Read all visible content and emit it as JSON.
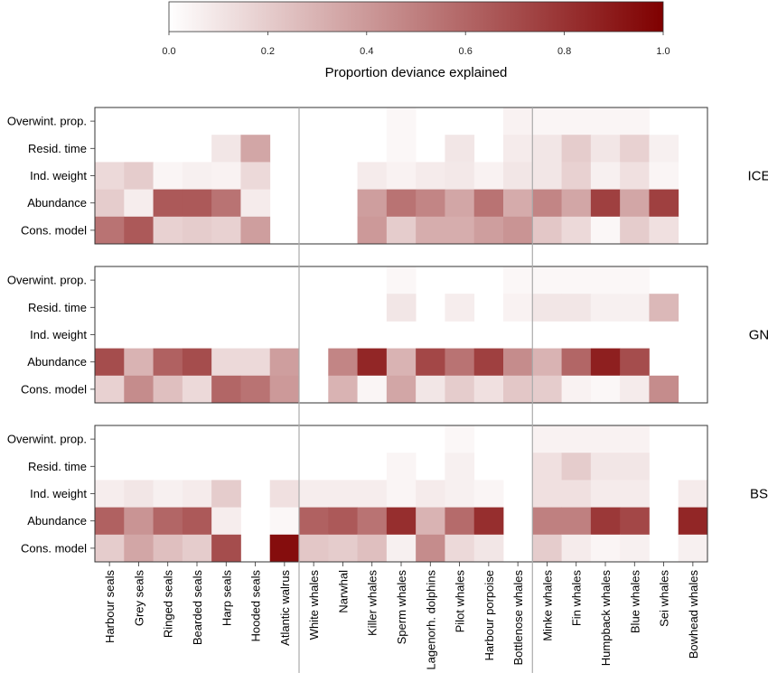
{
  "chart_data": {
    "type": "heatmap",
    "colorbar": {
      "title": "Proportion deviance explained",
      "min": 0.0,
      "max": 1.0,
      "ticks": [
        "0.0",
        "0.2",
        "0.4",
        "0.6",
        "0.8",
        "1.0"
      ],
      "color_low": "#ffffff",
      "color_high": "#7f0000"
    },
    "species": [
      "Harbour seals",
      "Grey seals",
      "Ringed seals",
      "Bearded seals",
      "Harp seals",
      "Hooded seals",
      "Atlantic walrus",
      "White whales",
      "Narwhal",
      "Killer whales",
      "Sperm whales",
      "Lagenorh. dolphins",
      "Pilot whales",
      "Harbour porpoise",
      "Bottlenose whales",
      "Minke whales",
      "Fin whales",
      "Humpback whales",
      "Blue whales",
      "Sei whales",
      "Bowhead whales"
    ],
    "variables": [
      "Overwint. prop.",
      "Resid. time",
      "Ind. weight",
      "Abundance",
      "Cons. model"
    ],
    "group_separators_after": [
      6,
      14
    ],
    "panels": [
      {
        "region": "ICE",
        "values": [
          [
            null,
            null,
            null,
            null,
            null,
            null,
            null,
            null,
            null,
            null,
            0.03,
            null,
            null,
            null,
            0.05,
            0.04,
            0.04,
            0.04,
            0.04,
            null,
            null
          ],
          [
            null,
            null,
            null,
            null,
            0.1,
            0.35,
            null,
            null,
            null,
            null,
            0.03,
            null,
            0.1,
            null,
            0.08,
            0.1,
            0.2,
            0.1,
            0.18,
            0.06,
            null
          ],
          [
            0.15,
            0.2,
            0.04,
            0.06,
            0.05,
            0.15,
            null,
            null,
            null,
            0.08,
            0.05,
            0.08,
            0.09,
            0.05,
            0.1,
            0.1,
            0.18,
            0.06,
            0.12,
            0.04,
            null
          ],
          [
            0.2,
            0.07,
            0.65,
            0.65,
            0.55,
            0.08,
            null,
            null,
            null,
            0.38,
            0.55,
            0.48,
            0.35,
            0.55,
            0.33,
            0.48,
            0.35,
            0.75,
            0.35,
            0.75,
            null
          ],
          [
            0.55,
            0.65,
            0.18,
            0.2,
            0.18,
            0.38,
            null,
            null,
            null,
            0.4,
            0.2,
            0.32,
            0.32,
            0.38,
            0.42,
            0.22,
            0.15,
            0.03,
            0.2,
            0.12,
            null
          ]
        ]
      },
      {
        "region": "GN",
        "values": [
          [
            null,
            null,
            null,
            null,
            null,
            null,
            null,
            null,
            null,
            null,
            0.03,
            null,
            null,
            null,
            0.03,
            0.03,
            0.03,
            0.03,
            0.03,
            null,
            null
          ],
          [
            null,
            null,
            null,
            null,
            null,
            null,
            null,
            null,
            null,
            null,
            0.1,
            null,
            0.07,
            null,
            0.05,
            0.1,
            0.1,
            0.06,
            0.06,
            0.28,
            null
          ],
          [
            null,
            null,
            null,
            null,
            null,
            null,
            null,
            null,
            null,
            null,
            null,
            null,
            null,
            null,
            null,
            null,
            null,
            null,
            null,
            null,
            null
          ],
          [
            0.7,
            0.3,
            0.62,
            0.7,
            0.15,
            0.15,
            0.38,
            null,
            0.48,
            0.85,
            0.3,
            0.72,
            0.55,
            0.75,
            0.45,
            0.3,
            0.6,
            0.88,
            0.7,
            null,
            null
          ],
          [
            0.18,
            0.45,
            0.25,
            0.15,
            0.6,
            0.55,
            0.4,
            null,
            0.3,
            0.04,
            0.35,
            0.1,
            0.2,
            0.12,
            0.22,
            0.2,
            0.05,
            0.03,
            0.08,
            0.45,
            null
          ]
        ]
      },
      {
        "region": "BS",
        "values": [
          [
            null,
            null,
            null,
            null,
            null,
            null,
            null,
            null,
            null,
            null,
            null,
            null,
            0.03,
            null,
            null,
            0.05,
            0.05,
            0.05,
            0.05,
            null,
            null
          ],
          [
            null,
            null,
            null,
            null,
            null,
            null,
            null,
            null,
            null,
            null,
            0.04,
            null,
            0.06,
            null,
            null,
            0.12,
            0.2,
            0.1,
            0.1,
            null,
            null
          ],
          [
            0.07,
            0.1,
            0.06,
            0.08,
            0.2,
            null,
            0.12,
            0.07,
            0.07,
            0.07,
            0.04,
            0.08,
            0.06,
            0.04,
            null,
            0.12,
            0.12,
            0.08,
            0.08,
            null,
            0.08
          ],
          [
            0.62,
            0.42,
            0.6,
            0.65,
            0.07,
            null,
            0.03,
            0.62,
            0.65,
            0.55,
            0.82,
            0.3,
            0.58,
            0.82,
            null,
            0.5,
            0.5,
            0.78,
            0.72,
            null,
            0.85
          ],
          [
            0.2,
            0.35,
            0.25,
            0.2,
            0.7,
            null,
            0.95,
            0.22,
            0.2,
            0.25,
            0.06,
            0.45,
            0.15,
            0.1,
            null,
            0.2,
            0.08,
            0.04,
            0.06,
            null,
            0.06
          ]
        ]
      }
    ]
  }
}
